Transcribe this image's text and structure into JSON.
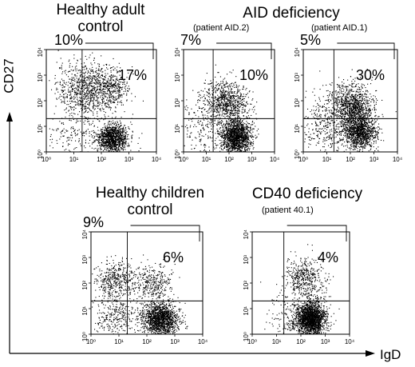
{
  "figure": {
    "y_axis_title": "CD27",
    "x_axis_title": "IgD",
    "group_titles": {
      "healthy_adult": [
        "Healthy adult",
        "control"
      ],
      "aid": [
        "AID deficiency"
      ],
      "healthy_children": [
        "Healthy children",
        "control"
      ],
      "cd40": [
        "CD40 deficiency"
      ]
    }
  },
  "chart_data": [
    {
      "type": "scatter",
      "subtitle": "",
      "xlabel": "IgD",
      "ylabel": "CD27",
      "xscale": "log",
      "yscale": "log",
      "xlim": [
        1,
        10000
      ],
      "ylim": [
        1,
        10000
      ],
      "x_ticks": [
        "10⁰",
        "10¹",
        "10²",
        "10³",
        "10⁴"
      ],
      "y_ticks": [
        "10⁰",
        "10¹",
        "10²",
        "10³",
        "10⁴"
      ],
      "gates": {
        "x": 20,
        "y": 20
      },
      "annotations": {
        "upper_left": "10%",
        "upper_right": "17%"
      },
      "clusters": [
        {
          "x": 30,
          "y": 300,
          "spread": 0.55,
          "weight": 0.35
        },
        {
          "x": 250,
          "y": 3.5,
          "spread": 0.28,
          "weight": 0.45
        },
        {
          "x": 250,
          "y": 300,
          "spread": 0.35,
          "weight": 0.12
        },
        {
          "x": 10,
          "y": 5,
          "spread": 0.6,
          "weight": 0.08
        }
      ]
    },
    {
      "type": "scatter",
      "subtitle": "(patient AID.2)",
      "xlabel": "IgD",
      "ylabel": "CD27",
      "xscale": "log",
      "yscale": "log",
      "xlim": [
        1,
        10000
      ],
      "ylim": [
        1,
        10000
      ],
      "x_ticks": [
        "10⁰",
        "10¹",
        "10²",
        "10³",
        "10⁴"
      ],
      "y_ticks": [
        "10⁰",
        "10¹",
        "10²",
        "10³",
        "10⁴"
      ],
      "gates": {
        "x": 20,
        "y": 20
      },
      "annotations": {
        "upper_left": "7%",
        "upper_right": "10%"
      },
      "clusters": [
        {
          "x": 40,
          "y": 100,
          "spread": 0.45,
          "weight": 0.22
        },
        {
          "x": 200,
          "y": 4,
          "spread": 0.33,
          "weight": 0.6
        },
        {
          "x": 200,
          "y": 80,
          "spread": 0.35,
          "weight": 0.1
        },
        {
          "x": 8,
          "y": 6,
          "spread": 0.6,
          "weight": 0.08
        }
      ]
    },
    {
      "type": "scatter",
      "subtitle": "(patient AID.1)",
      "xlabel": "IgD",
      "ylabel": "CD27",
      "xscale": "log",
      "yscale": "log",
      "xlim": [
        1,
        10000
      ],
      "ylim": [
        1,
        10000
      ],
      "x_ticks": [
        "10⁰",
        "10¹",
        "10²",
        "10³",
        "10⁴"
      ],
      "y_ticks": [
        "10⁰",
        "10¹",
        "10²",
        "10³",
        "10⁴"
      ],
      "gates": {
        "x": 20,
        "y": 20
      },
      "annotations": {
        "upper_left": "5%",
        "upper_right": "30%"
      },
      "clusters": [
        {
          "x": 120,
          "y": 60,
          "spread": 0.45,
          "weight": 0.4
        },
        {
          "x": 250,
          "y": 6,
          "spread": 0.35,
          "weight": 0.45
        },
        {
          "x": 10,
          "y": 30,
          "spread": 0.5,
          "weight": 0.08
        },
        {
          "x": 8,
          "y": 4,
          "spread": 0.5,
          "weight": 0.07
        }
      ]
    },
    {
      "type": "scatter",
      "subtitle": "",
      "xlabel": "IgD",
      "ylabel": "CD27",
      "xscale": "log",
      "yscale": "log",
      "xlim": [
        1,
        10000
      ],
      "ylim": [
        1,
        10000
      ],
      "x_ticks": [
        "10⁰",
        "10¹",
        "10²",
        "10³",
        "10⁴"
      ],
      "y_ticks": [
        "10⁰",
        "10¹",
        "10²",
        "10³",
        "10⁴"
      ],
      "gates": {
        "x": 20,
        "y": 20
      },
      "annotations": {
        "upper_left": "9%",
        "upper_right": "6%"
      },
      "clusters": [
        {
          "x": 8,
          "y": 120,
          "spread": 0.4,
          "weight": 0.18
        },
        {
          "x": 150,
          "y": 100,
          "spread": 0.35,
          "weight": 0.12
        },
        {
          "x": 300,
          "y": 4,
          "spread": 0.32,
          "weight": 0.58
        },
        {
          "x": 8,
          "y": 5,
          "spread": 0.45,
          "weight": 0.12
        }
      ]
    },
    {
      "type": "scatter",
      "subtitle": "(patient 40.1)",
      "xlabel": "IgD",
      "ylabel": "CD27",
      "xscale": "log",
      "yscale": "log",
      "xlim": [
        1,
        10000
      ],
      "ylim": [
        1,
        10000
      ],
      "x_ticks": [
        "10⁰",
        "10¹",
        "10²",
        "10³",
        "10⁴"
      ],
      "y_ticks": [
        "10⁰",
        "10¹",
        "10²",
        "10³",
        "10⁴"
      ],
      "gates": {
        "x": 20,
        "y": 20
      },
      "annotations": {
        "upper_left": "",
        "upper_right": "4%"
      },
      "clusters": [
        {
          "x": 120,
          "y": 200,
          "spread": 0.38,
          "weight": 0.15
        },
        {
          "x": 250,
          "y": 4,
          "spread": 0.3,
          "weight": 0.72
        },
        {
          "x": 40,
          "y": 5,
          "spread": 0.5,
          "weight": 0.08
        },
        {
          "x": 300,
          "y": 40,
          "spread": 0.35,
          "weight": 0.05
        }
      ]
    }
  ]
}
